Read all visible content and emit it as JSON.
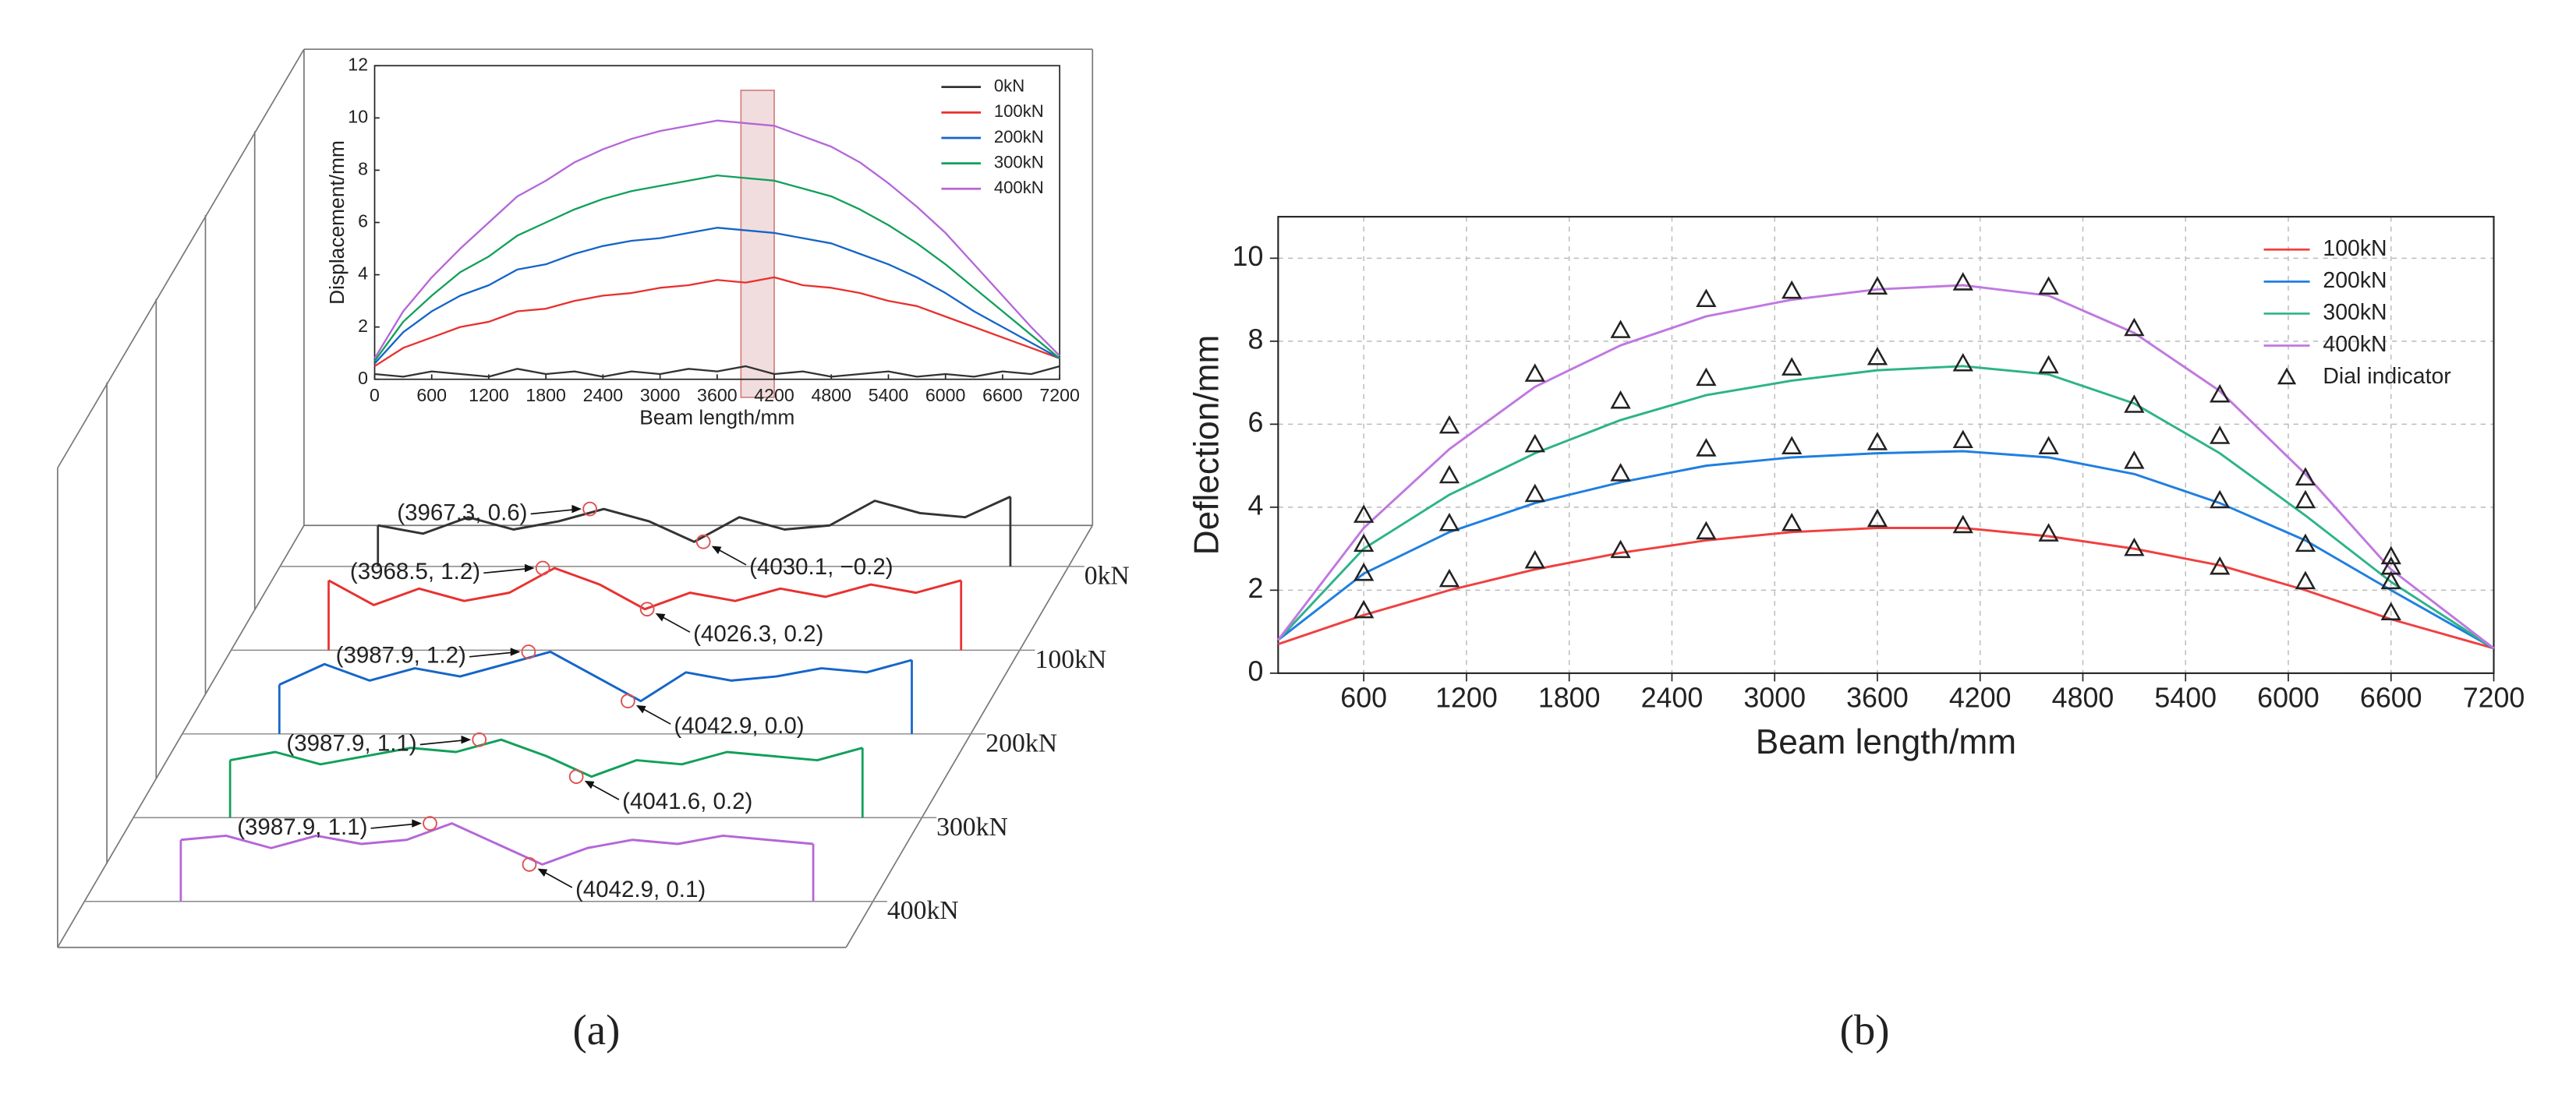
{
  "chart_data": [
    {
      "type": "line",
      "caption": "(a)",
      "xlabel": "Beam length/mm",
      "ylabel": "Displacement/mm",
      "xlim": [
        0,
        7200
      ],
      "ylim": [
        0,
        12
      ],
      "xticks": [
        0,
        600,
        1200,
        1800,
        2400,
        3000,
        3600,
        4200,
        4800,
        5400,
        6000,
        6600,
        7200
      ],
      "yticks": [
        0,
        2,
        4,
        6,
        8,
        10,
        12
      ],
      "legend": "top-right",
      "window": [
        3850,
        4200
      ],
      "x": [
        0,
        300,
        600,
        900,
        1200,
        1500,
        1800,
        2100,
        2400,
        2700,
        3000,
        3300,
        3600,
        3900,
        4200,
        4500,
        4800,
        5100,
        5400,
        5700,
        6000,
        6300,
        6600,
        6900,
        7200
      ],
      "series": [
        {
          "name": "0kN",
          "color": "#333333",
          "values": [
            0.2,
            0.1,
            0.3,
            0.2,
            0.1,
            0.4,
            0.2,
            0.3,
            0.1,
            0.3,
            0.2,
            0.4,
            0.3,
            0.5,
            0.2,
            0.3,
            0.1,
            0.2,
            0.3,
            0.1,
            0.2,
            0.1,
            0.3,
            0.2,
            0.5
          ]
        },
        {
          "name": "100kN",
          "color": "#e8312f",
          "values": [
            0.5,
            1.2,
            1.6,
            2.0,
            2.2,
            2.6,
            2.7,
            3.0,
            3.2,
            3.3,
            3.5,
            3.6,
            3.8,
            3.7,
            3.9,
            3.6,
            3.5,
            3.3,
            3.0,
            2.8,
            2.4,
            2.0,
            1.6,
            1.2,
            0.8
          ]
        },
        {
          "name": "200kN",
          "color": "#1565c8",
          "values": [
            0.6,
            1.8,
            2.6,
            3.2,
            3.6,
            4.2,
            4.4,
            4.8,
            5.1,
            5.3,
            5.4,
            5.6,
            5.8,
            5.7,
            5.6,
            5.4,
            5.2,
            4.8,
            4.4,
            3.9,
            3.3,
            2.6,
            2.0,
            1.4,
            0.8
          ]
        },
        {
          "name": "300kN",
          "color": "#11a05a",
          "values": [
            0.7,
            2.2,
            3.2,
            4.1,
            4.7,
            5.5,
            6.0,
            6.5,
            6.9,
            7.2,
            7.4,
            7.6,
            7.8,
            7.7,
            7.6,
            7.3,
            7.0,
            6.5,
            5.9,
            5.2,
            4.4,
            3.5,
            2.6,
            1.7,
            0.8
          ]
        },
        {
          "name": "400kN",
          "color": "#b566d8",
          "values": [
            0.8,
            2.6,
            3.9,
            5.0,
            6.0,
            7.0,
            7.6,
            8.3,
            8.8,
            9.2,
            9.5,
            9.7,
            9.9,
            9.8,
            9.7,
            9.3,
            8.9,
            8.3,
            7.5,
            6.6,
            5.6,
            4.4,
            3.2,
            2.0,
            0.9
          ]
        }
      ],
      "profiles": {
        "xlim": [
          3850,
          4200
        ],
        "x": [
          3850,
          3875,
          3900,
          3925,
          3950,
          3975,
          4000,
          4025,
          4050,
          4075,
          4100,
          4125,
          4150,
          4175,
          4200
        ],
        "series": [
          {
            "name": "0kN",
            "color": "#333333",
            "values": [
              0.2,
              0.0,
              0.4,
              0.1,
              0.3,
              0.6,
              0.3,
              -0.2,
              0.4,
              0.1,
              0.2,
              0.8,
              0.5,
              0.4,
              0.9
            ],
            "annotations": [
              {
                "x": 3967.3,
                "y": 0.6,
                "label": "(3967.3, 0.6)"
              },
              {
                "x": 4030.1,
                "y": -0.2,
                "label": "(4030.1, −0.2)"
              }
            ]
          },
          {
            "name": "100kN",
            "color": "#e8312f",
            "values": [
              0.9,
              0.3,
              0.7,
              0.4,
              0.6,
              1.2,
              0.8,
              0.2,
              0.6,
              0.4,
              0.7,
              0.5,
              0.8,
              0.6,
              0.9
            ],
            "annotations": [
              {
                "x": 3968.5,
                "y": 1.2,
                "label": "(3968.5, 1.2)"
              },
              {
                "x": 4026.3,
                "y": 0.2,
                "label": "(4026.3, 0.2)"
              }
            ]
          },
          {
            "name": "200kN",
            "color": "#1565c8",
            "values": [
              0.4,
              0.9,
              0.5,
              0.8,
              0.6,
              0.9,
              1.2,
              0.6,
              0.0,
              0.7,
              0.5,
              0.6,
              0.8,
              0.7,
              1.0
            ],
            "annotations": [
              {
                "x": 3987.9,
                "y": 1.2,
                "label": "(3987.9, 1.2)"
              },
              {
                "x": 4042.9,
                "y": 0.0,
                "label": "(4042.9, 0.0)"
              }
            ]
          },
          {
            "name": "300kN",
            "color": "#11a05a",
            "values": [
              0.6,
              0.8,
              0.5,
              0.7,
              0.9,
              0.8,
              1.1,
              0.7,
              0.2,
              0.6,
              0.5,
              0.8,
              0.7,
              0.6,
              0.9
            ],
            "annotations": [
              {
                "x": 3987.9,
                "y": 1.1,
                "label": "(3987.9, 1.1)"
              },
              {
                "x": 4041.6,
                "y": 0.2,
                "label": "(4041.6, 0.2)"
              }
            ]
          },
          {
            "name": "400kN",
            "color": "#b566d8",
            "values": [
              0.7,
              0.8,
              0.5,
              0.8,
              0.6,
              0.7,
              1.1,
              0.6,
              0.1,
              0.5,
              0.7,
              0.6,
              0.8,
              0.7,
              0.6
            ],
            "annotations": [
              {
                "x": 3987.9,
                "y": 1.1,
                "label": "(3987.9, 1.1)"
              },
              {
                "x": 4042.9,
                "y": 0.1,
                "label": "(4042.9, 0.1)"
              }
            ]
          }
        ]
      }
    },
    {
      "type": "line",
      "caption": "(b)",
      "xlabel": "Beam length/mm",
      "ylabel": "Deflection/mm",
      "xlim": [
        100,
        7200
      ],
      "ylim": [
        0,
        11
      ],
      "xticks": [
        600,
        1200,
        1800,
        2400,
        3000,
        3600,
        4200,
        4800,
        5400,
        6000,
        6600,
        7200
      ],
      "yticks": [
        0,
        2,
        4,
        6,
        8,
        10
      ],
      "grid": true,
      "legend": "top-right",
      "x": [
        100,
        600,
        1100,
        1600,
        2100,
        2600,
        3100,
        3600,
        4100,
        4600,
        5100,
        5600,
        6100,
        6600,
        7200
      ],
      "series": [
        {
          "name": "100kN",
          "color": "#f04040",
          "values": [
            0.7,
            1.4,
            2.0,
            2.5,
            2.9,
            3.2,
            3.4,
            3.5,
            3.5,
            3.3,
            3.0,
            2.6,
            2.0,
            1.3,
            0.6
          ]
        },
        {
          "name": "200kN",
          "color": "#1f7fe0",
          "values": [
            0.8,
            2.4,
            3.4,
            4.1,
            4.6,
            5.0,
            5.2,
            5.3,
            5.35,
            5.2,
            4.8,
            4.1,
            3.2,
            2.0,
            0.6
          ]
        },
        {
          "name": "300kN",
          "color": "#2db38a",
          "values": [
            0.8,
            3.0,
            4.3,
            5.3,
            6.1,
            6.7,
            7.05,
            7.3,
            7.4,
            7.2,
            6.5,
            5.3,
            3.8,
            2.2,
            0.6
          ]
        },
        {
          "name": "400kN",
          "color": "#c078e0",
          "values": [
            0.8,
            3.5,
            5.4,
            6.9,
            7.9,
            8.6,
            9.0,
            9.25,
            9.35,
            9.1,
            8.2,
            6.8,
            4.8,
            2.5,
            0.6
          ]
        }
      ],
      "scatter": {
        "name": "Dial indicator",
        "color": "#222222",
        "x": [
          600,
          1100,
          1600,
          2100,
          2600,
          3100,
          3600,
          4100,
          4600,
          5100,
          5600,
          6100,
          6600,
          600,
          1100,
          1600,
          2100,
          2600,
          3100,
          3600,
          4100,
          4600,
          5100,
          5600,
          6100,
          6600,
          600,
          1100,
          1600,
          2100,
          2600,
          3100,
          3600,
          4100,
          4600,
          5100,
          5600,
          6100,
          6600,
          600,
          1100,
          1600,
          2100,
          2600,
          3100,
          3600,
          4100,
          4600,
          5100,
          5600,
          6100,
          6600
        ],
        "values": [
          1.5,
          2.25,
          2.7,
          2.95,
          3.4,
          3.6,
          3.7,
          3.55,
          3.35,
          3.0,
          2.55,
          2.2,
          1.45,
          2.4,
          3.6,
          4.3,
          4.8,
          5.4,
          5.45,
          5.55,
          5.6,
          5.45,
          5.1,
          4.15,
          3.1,
          2.2,
          3.1,
          4.75,
          5.5,
          6.55,
          7.1,
          7.35,
          7.6,
          7.45,
          7.4,
          6.45,
          5.7,
          4.15,
          2.55,
          3.8,
          5.95,
          7.2,
          8.25,
          9.0,
          9.2,
          9.3,
          9.4,
          9.3,
          8.3,
          6.7,
          4.7,
          2.8
        ]
      }
    }
  ]
}
